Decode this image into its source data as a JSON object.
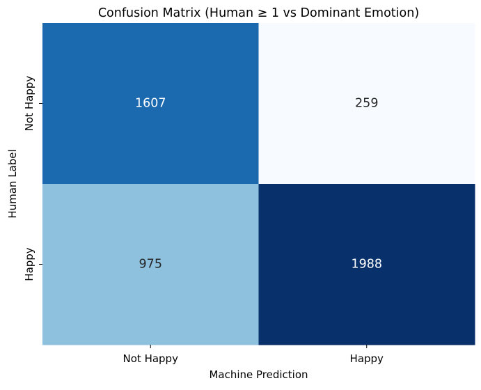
{
  "chart_data": {
    "type": "heatmap",
    "title": "Confusion Matrix (Human ≥ 1 vs Dominant Emotion)",
    "xlabel": "Machine Prediction",
    "ylabel": "Human Label",
    "x_categories": [
      "Not Happy",
      "Happy"
    ],
    "y_categories": [
      "Not Happy",
      "Happy"
    ],
    "values": [
      [
        1607,
        259
      ],
      [
        975,
        1988
      ]
    ],
    "colormap": "Blues",
    "color_range": [
      259,
      1988
    ],
    "colorbar": false,
    "colors": {
      "low": "#f7fbff",
      "high": "#08306b",
      "text_dark": "#262626",
      "text_light": "#ffffff"
    }
  }
}
